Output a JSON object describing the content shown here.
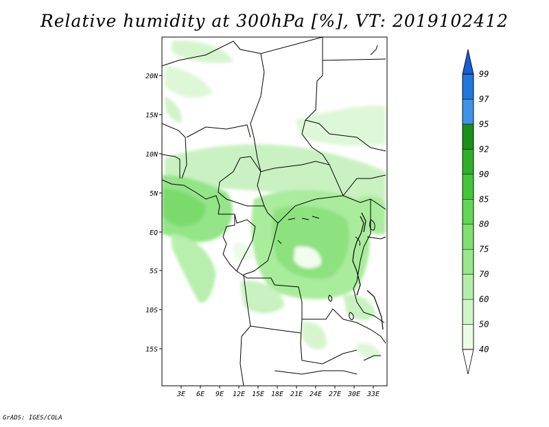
{
  "title": "Relative humidity at 300hPa [%], VT: 2019102412",
  "footer": "GrADS: IGES/COLA",
  "map": {
    "lat_ticks": [
      "20N",
      "15N",
      "10N",
      "5N",
      "EQ",
      "5S",
      "10S",
      "15S"
    ],
    "lon_ticks": [
      "3E",
      "6E",
      "9E",
      "12E",
      "15E",
      "18E",
      "21E",
      "24E",
      "27E",
      "30E",
      "33E"
    ]
  },
  "colorbar": {
    "levels": [
      "40",
      "50",
      "60",
      "70",
      "75",
      "80",
      "85",
      "90",
      "92",
      "95",
      "97",
      "99"
    ],
    "colors": [
      "#eafbe6",
      "#cff5c8",
      "#b5eeaa",
      "#99e68c",
      "#7fdf70",
      "#63d656",
      "#44c63a",
      "#2eb02a",
      "#1a9018",
      "#3f93e6",
      "#2277dd",
      "#155fd0"
    ]
  }
}
